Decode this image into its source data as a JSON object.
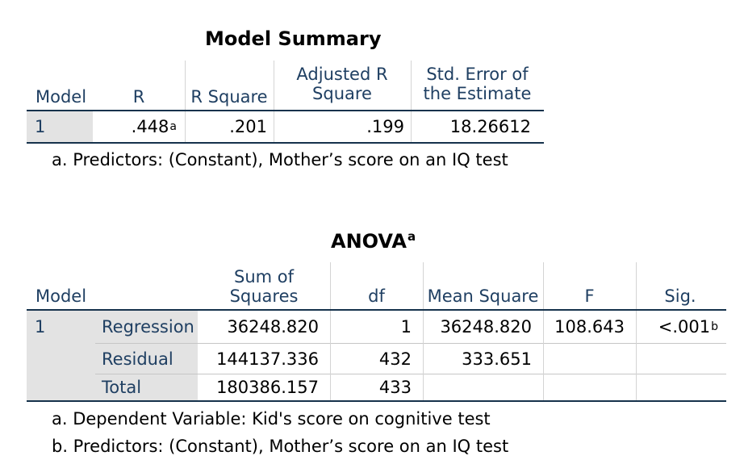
{
  "model_summary": {
    "title": "Model Summary",
    "headers": {
      "model": "Model",
      "r": "R",
      "r_square": "R Square",
      "adj_r_square": "Adjusted R Square",
      "std_error": "Std. Error of the Estimate"
    },
    "row": {
      "model": "1",
      "r": ".448",
      "r_sup": "a",
      "r_square": ".201",
      "adj_r_square": ".199",
      "std_error": "18.26612"
    },
    "footnotes": [
      "a. Predictors: (Constant), Mother’s score on an IQ test"
    ]
  },
  "anova": {
    "title": "ANOVA",
    "title_sup": "a",
    "headers": {
      "model": "Model",
      "sum_squares": "Sum of Squares",
      "df": "df",
      "mean_square": "Mean Square",
      "f": "F",
      "sig": "Sig."
    },
    "model_number": "1",
    "rows": [
      {
        "label": "Regression",
        "sum_squares": "36248.820",
        "df": "1",
        "mean_square": "36248.820",
        "f": "108.643",
        "sig": "<.001",
        "sig_sup": "b"
      },
      {
        "label": "Residual",
        "sum_squares": "144137.336",
        "df": "432",
        "mean_square": "333.651",
        "f": "",
        "sig": ""
      },
      {
        "label": "Total",
        "sum_squares": "180386.157",
        "df": "433",
        "mean_square": "",
        "f": "",
        "sig": ""
      }
    ],
    "footnotes": [
      "a. Dependent Variable: Kid's score on cognitive test",
      "b. Predictors: (Constant), Mother’s score on an IQ test"
    ]
  }
}
